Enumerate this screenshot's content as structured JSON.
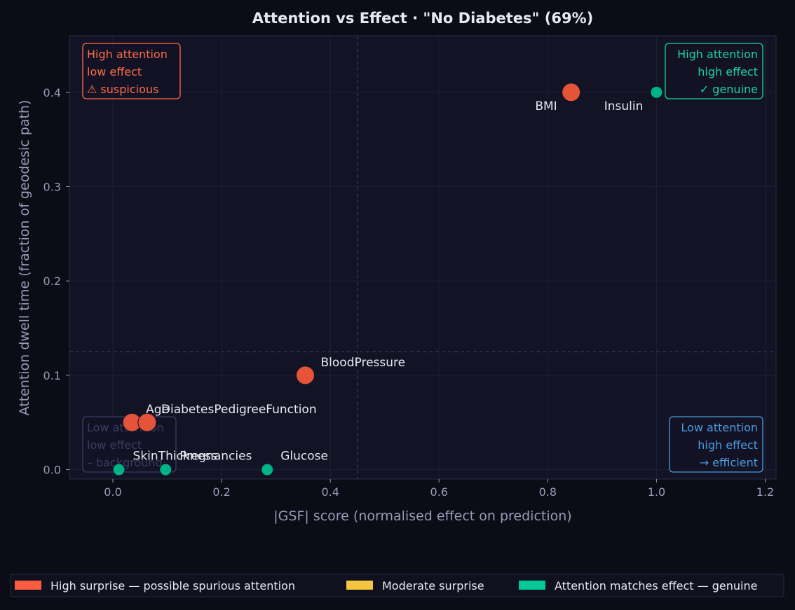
{
  "chart_data": {
    "type": "scatter",
    "title": "Attention vs Effect  ·  \"No Diabetes\" (69%)",
    "xlabel": "|GSF| score  (normalised effect on prediction)",
    "ylabel": "Attention dwell time  (fraction of geodesic path)",
    "xlim": [
      -0.08,
      1.22
    ],
    "ylim": [
      -0.01,
      0.46
    ],
    "xticks": [
      0.0,
      0.2,
      0.4,
      0.6,
      0.8,
      1.0,
      1.2
    ],
    "xtick_labels": [
      "0.0",
      "0.2",
      "0.4",
      "0.6",
      "0.8",
      "1.0",
      "1.2"
    ],
    "yticks": [
      0.0,
      0.1,
      0.2,
      0.3,
      0.4
    ],
    "ytick_labels": [
      "0.0",
      "0.1",
      "0.2",
      "0.3",
      "0.4"
    ],
    "grid": true,
    "thresholds": {
      "x": 0.45,
      "y": 0.125
    },
    "points": [
      {
        "label": "BMI",
        "x": 0.843,
        "y": 0.4,
        "category": "high"
      },
      {
        "label": "Insulin",
        "x": 1.0,
        "y": 0.4,
        "category": "genuine"
      },
      {
        "label": "BloodPressure",
        "x": 0.354,
        "y": 0.1,
        "category": "high"
      },
      {
        "label": "Age",
        "x": 0.035,
        "y": 0.05,
        "category": "high"
      },
      {
        "label": "DiabetesPedigreeFunction",
        "x": 0.063,
        "y": 0.05,
        "category": "high"
      },
      {
        "label": "SkinThickness",
        "x": 0.011,
        "y": 0.0,
        "category": "genuine"
      },
      {
        "label": "Pregnancies",
        "x": 0.097,
        "y": 0.0,
        "category": "genuine"
      },
      {
        "label": "Glucose",
        "x": 0.284,
        "y": 0.0,
        "category": "genuine"
      }
    ],
    "quadrants": {
      "top_left": [
        "High attention",
        "low effect",
        "⚠ suspicious"
      ],
      "top_right": [
        "High attention",
        "high effect",
        "✓ genuine"
      ],
      "bottom_left": [
        "Low attention",
        "low effect",
        "– background"
      ],
      "bottom_right": [
        "Low attention",
        "high effect",
        "→ efficient"
      ]
    },
    "legend": [
      {
        "label": "High surprise — possible spurious attention",
        "color": "#ff5b3f"
      },
      {
        "label": "Moderate surprise",
        "color": "#f5c542"
      },
      {
        "label": "Attention matches effect — genuine",
        "color": "#00c896"
      }
    ],
    "legend_position": "bottom"
  },
  "colors": {
    "high": "#e55439",
    "genuine": "#00b386",
    "suspicious": "#ff6b4a",
    "genuineText": "#1ad4a0",
    "efficient": "#4a9de0",
    "background": "#3a3d63"
  }
}
